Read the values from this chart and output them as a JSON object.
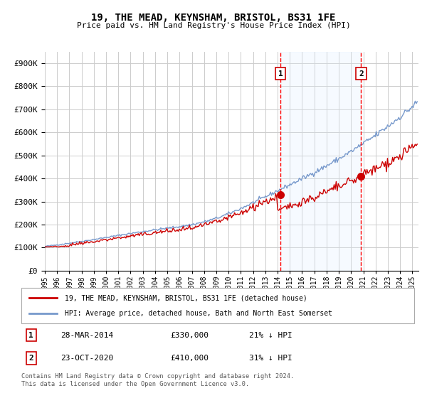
{
  "title": "19, THE MEAD, KEYNSHAM, BRISTOL, BS31 1FE",
  "subtitle": "Price paid vs. HM Land Registry's House Price Index (HPI)",
  "ylim": [
    0,
    950000
  ],
  "xlim_start": 1995.0,
  "xlim_end": 2025.5,
  "sale1_date": 2014.23,
  "sale1_price": 330000,
  "sale1_label": "1",
  "sale2_date": 2020.81,
  "sale2_price": 410000,
  "sale2_label": "2",
  "hpi_color": "#7799cc",
  "price_color": "#cc0000",
  "shading_color": "#ddeeff",
  "dashed_line_color": "#ff0000",
  "legend_price_label": "19, THE MEAD, KEYNSHAM, BRISTOL, BS31 1FE (detached house)",
  "legend_hpi_label": "HPI: Average price, detached house, Bath and North East Somerset",
  "table_row1": [
    "1",
    "28-MAR-2014",
    "£330,000",
    "21% ↓ HPI"
  ],
  "table_row2": [
    "2",
    "23-OCT-2020",
    "£410,000",
    "31% ↓ HPI"
  ],
  "footer": "Contains HM Land Registry data © Crown copyright and database right 2024.\nThis data is licensed under the Open Government Licence v3.0.",
  "bg_color": "#ffffff",
  "grid_color": "#cccccc",
  "yticks": [
    0,
    100000,
    200000,
    300000,
    400000,
    500000,
    600000,
    700000,
    800000,
    900000
  ],
  "ytick_labels": [
    "£0",
    "£100K",
    "£200K",
    "£300K",
    "£400K",
    "£500K",
    "£600K",
    "£700K",
    "£800K",
    "£900K"
  ]
}
